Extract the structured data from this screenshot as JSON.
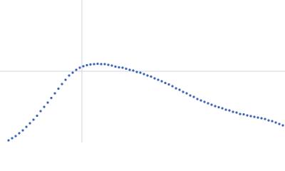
{
  "chart_data": {
    "type": "scatter",
    "color": "#3a63b8",
    "xlim": [
      0,
      400
    ],
    "ylim": [
      0,
      200
    ],
    "xticks": [
      115
    ],
    "yticks": [
      100
    ],
    "grid": true,
    "x": [
      12,
      17,
      22,
      27,
      32,
      37,
      42,
      47,
      52,
      57,
      62,
      67,
      72,
      77,
      82,
      87,
      92,
      97,
      102,
      107,
      112,
      117,
      122,
      127,
      132,
      137,
      142,
      147,
      152,
      157,
      162,
      167,
      172,
      177,
      182,
      187,
      192,
      197,
      202,
      207,
      212,
      217,
      222,
      227,
      232,
      237,
      242,
      247,
      252,
      257,
      262,
      267,
      272,
      277,
      282,
      287,
      292,
      297,
      302,
      307,
      312,
      317,
      322,
      327,
      332,
      337,
      342,
      347,
      352,
      357,
      362,
      367,
      372,
      377,
      382,
      387,
      392,
      397
    ],
    "values": [
      3,
      6,
      9,
      13,
      17,
      22,
      27,
      32,
      37.5,
      44,
      50,
      56,
      62.5,
      69,
      75.5,
      82,
      88,
      94,
      98,
      102,
      105,
      107,
      108.5,
      109.5,
      110,
      110.5,
      110,
      110,
      109,
      108,
      106.5,
      105.5,
      105,
      103.5,
      102,
      101,
      99,
      98,
      96,
      94,
      92.5,
      90,
      88,
      86,
      83.5,
      81.5,
      79,
      76,
      74,
      71,
      69,
      66,
      64,
      61,
      59,
      57,
      55,
      53,
      51,
      49.5,
      48,
      46,
      45,
      43,
      42,
      40,
      39.5,
      38,
      37,
      36,
      35,
      34,
      33,
      31,
      30,
      28,
      26,
      24
    ]
  }
}
